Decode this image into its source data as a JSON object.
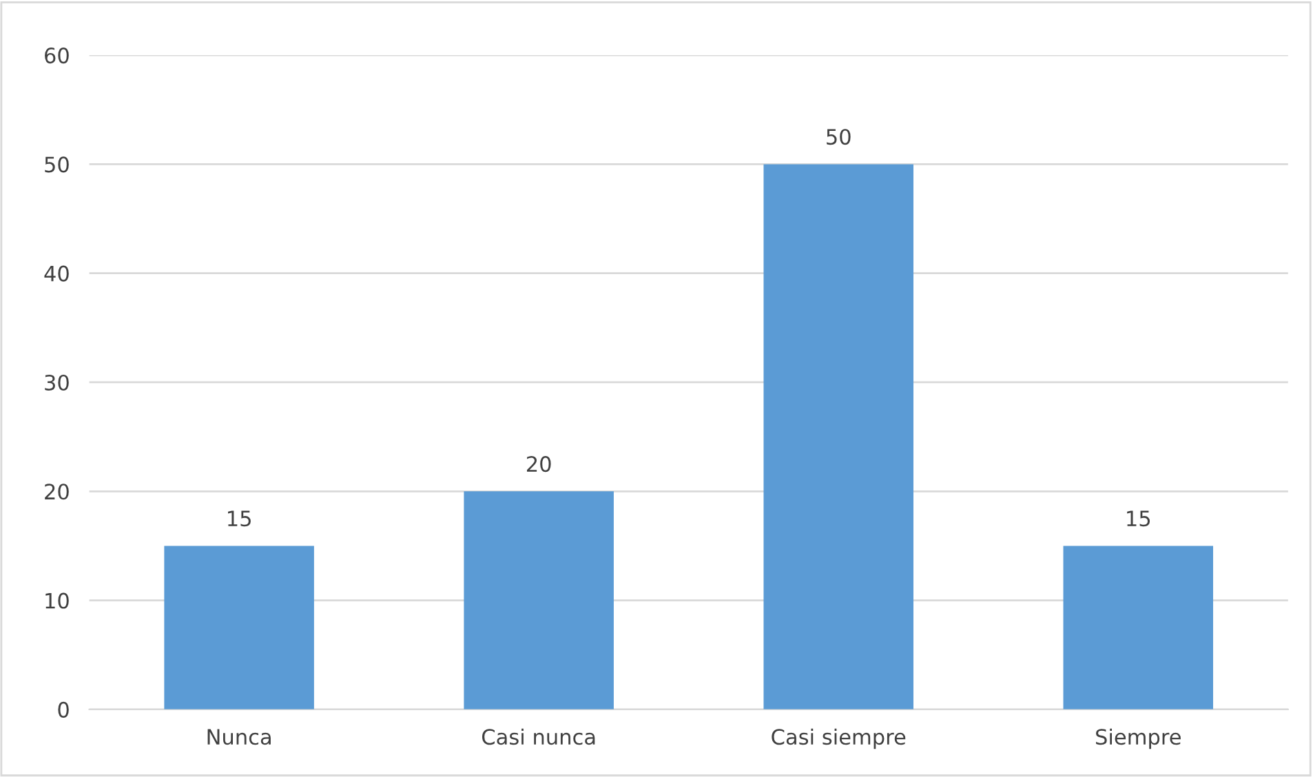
{
  "chart_data": {
    "type": "bar",
    "categories": [
      "Nunca",
      "Casi nunca",
      "Casi siempre",
      "Siempre"
    ],
    "values": [
      15,
      20,
      50,
      15
    ],
    "color": "#5b9bd5",
    "ylim": [
      0,
      60
    ],
    "yticks": [
      0,
      10,
      20,
      30,
      40,
      50,
      60
    ],
    "grid": "y",
    "data_labels": true
  }
}
